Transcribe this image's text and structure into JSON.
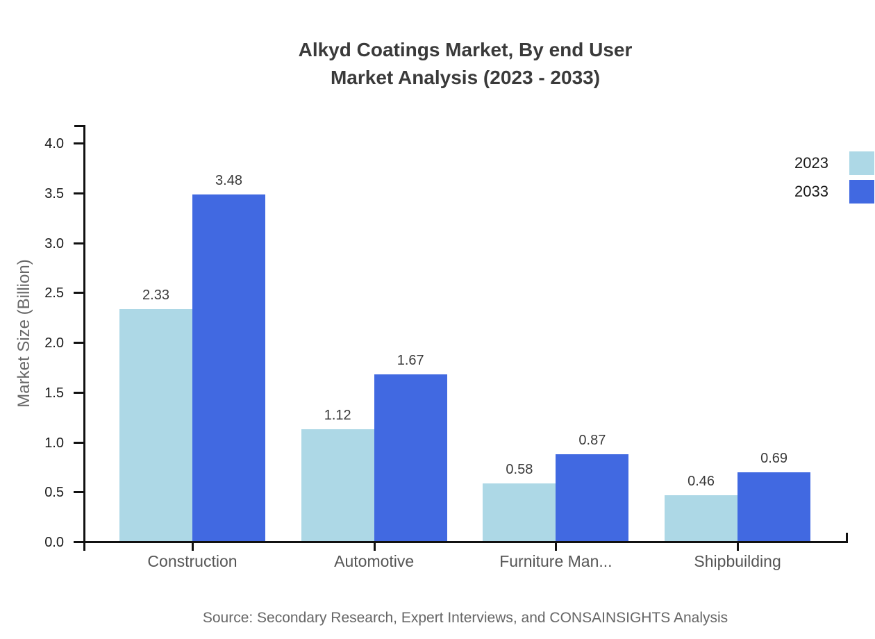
{
  "title": {
    "line1": "Alkyd Coatings Market, By end User",
    "line2": "Market Analysis (2023 - 2033)"
  },
  "chart_data": {
    "type": "bar",
    "categories": [
      "Construction",
      "Automotive",
      "Furniture Man...",
      "Shipbuilding"
    ],
    "series": [
      {
        "name": "2023",
        "color": "#ADD8E6",
        "values": [
          2.33,
          1.12,
          0.58,
          0.46
        ]
      },
      {
        "name": "2033",
        "color": "#4169E1",
        "values": [
          3.48,
          1.67,
          0.87,
          0.69
        ]
      }
    ],
    "value_labels": [
      "2.33",
      "3.48",
      "1.12",
      "1.67",
      "0.58",
      "0.87",
      "0.46",
      "0.69"
    ],
    "xlabel": "",
    "ylabel": "Market Size (Billion)",
    "ylim": [
      0.0,
      4.0
    ],
    "yticks": [
      "0.0",
      "0.5",
      "1.0",
      "1.5",
      "2.0",
      "2.5",
      "3.0",
      "3.5",
      "4.0"
    ],
    "grid": false,
    "legend_position": "top-right",
    "axis_color": "#111111"
  },
  "source": "Source: Secondary Research, Expert Interviews, and CONSAINSIGHTS Analysis"
}
